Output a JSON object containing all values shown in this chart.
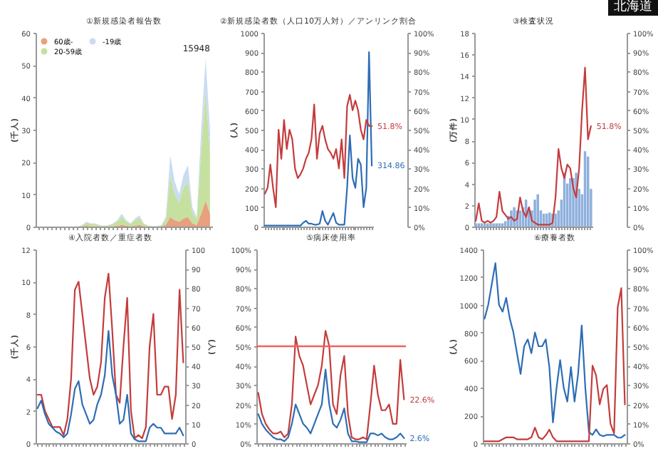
{
  "chart_data": [
    {
      "type": "area",
      "title": "①新規感染者報告数",
      "ylabel": "(千人)",
      "annotations": [
        "15948"
      ],
      "stacked": true,
      "legend": "top left",
      "categories": [
        null,
        null,
        null,
        null,
        null,
        null,
        null,
        null,
        null,
        null,
        null,
        null,
        null,
        null,
        null,
        null,
        null,
        null,
        null,
        null,
        null,
        null,
        null,
        null,
        null,
        null,
        null,
        null,
        null,
        null,
        null,
        null,
        null,
        null,
        null,
        null,
        null,
        null,
        null,
        null
      ],
      "ylim": [
        0,
        60
      ],
      "yticks": [
        0,
        10,
        20,
        30,
        40,
        50,
        60
      ],
      "series": [
        {
          "name": "60歳-",
          "color": "#e8a07f",
          "values": [
            0,
            0,
            0,
            0,
            0,
            0,
            0,
            0,
            0,
            0,
            0.1,
            0.2,
            0.1,
            0.1,
            0.1,
            0,
            0.1,
            0.1,
            0.3,
            0.5,
            0.3,
            0.1,
            0.3,
            0.5,
            0.1,
            0,
            0,
            0,
            0.1,
            0.5,
            3,
            2,
            1.5,
            2.5,
            3,
            1,
            0.5,
            4,
            8,
            4
          ]
        },
        {
          "name": "20-59歳",
          "color": "#c6e0a0",
          "values": [
            0,
            0,
            0,
            0,
            0,
            0,
            0,
            0,
            0,
            0,
            0.3,
            1,
            0.7,
            0.7,
            0.3,
            0.2,
            0.3,
            0.7,
            1.3,
            2.7,
            1.3,
            0.7,
            1.7,
            2.3,
            0.7,
            0.2,
            0.1,
            0.1,
            0.3,
            1.8,
            13,
            8,
            6,
            9.5,
            11,
            3.5,
            1.8,
            19,
            34,
            19
          ]
        },
        {
          "name": "-19歳",
          "color": "#c9dcf0",
          "values": [
            0,
            0,
            0,
            0,
            0,
            0,
            0,
            0,
            0,
            0,
            0.1,
            0.3,
            0.2,
            0.2,
            0.1,
            0.1,
            0.1,
            0.2,
            0.4,
            0.8,
            0.4,
            0.2,
            0.5,
            0.7,
            0.2,
            0.1,
            0.1,
            0.1,
            0.1,
            0.7,
            6,
            4,
            2.5,
            4,
            5,
            1.5,
            0.7,
            7,
            10,
            7
          ]
        }
      ]
    },
    {
      "type": "line",
      "title": "②新規感染者数（人口10万人対）／アンリンク割合",
      "ylabel": "(人)",
      "categories": [
        null,
        null,
        null,
        null,
        null,
        null,
        null,
        null,
        null,
        null,
        null,
        null,
        null,
        null,
        null,
        null,
        null,
        null,
        null,
        null,
        null,
        null,
        null,
        null,
        null,
        null,
        null,
        null,
        null,
        null,
        null,
        null,
        null,
        null,
        null,
        null,
        null,
        null,
        null,
        null
      ],
      "ylim": [
        0,
        1000
      ],
      "yticks": [
        0,
        100,
        200,
        300,
        400,
        500,
        600,
        700,
        800,
        900,
        1000
      ],
      "y2lim": [
        0,
        100
      ],
      "y2ticks": [
        {
          "value": 0,
          "label": "0%"
        },
        {
          "value": 10,
          "label": "10%"
        },
        {
          "value": 20,
          "label": "20%"
        },
        {
          "value": 30,
          "label": "30%"
        },
        {
          "value": 40,
          "label": "40%"
        },
        {
          "value": 50,
          "label": "50%"
        },
        {
          "value": 60,
          "label": "60%"
        },
        {
          "value": 70,
          "label": "70%"
        },
        {
          "value": 80,
          "label": "80%"
        },
        {
          "value": 90,
          "label": "90%"
        },
        {
          "value": 100,
          "label": "100%"
        }
      ],
      "series": [
        {
          "color": "#2e6db5",
          "values": [
            5,
            5,
            5,
            5,
            5,
            5,
            5,
            5,
            5,
            5,
            5,
            5,
            5,
            5,
            20,
            30,
            15,
            15,
            10,
            10,
            15,
            80,
            30,
            10,
            40,
            70,
            20,
            10,
            10,
            10,
            200,
            470,
            250,
            200,
            350,
            320,
            100,
            200,
            900,
            314.86
          ],
          "value_labels": [
            null,
            null,
            null,
            null,
            null,
            null,
            null,
            null,
            null,
            null,
            null,
            null,
            null,
            null,
            null,
            null,
            null,
            null,
            null,
            null,
            null,
            null,
            null,
            null,
            null,
            null,
            null,
            null,
            null,
            null,
            null,
            null,
            null,
            null,
            null,
            null,
            null,
            null,
            null,
            "314.86"
          ]
        },
        {
          "color": "#c43c3c",
          "axis": "y2",
          "values": [
            17,
            20,
            32,
            20,
            10,
            50,
            35,
            55,
            40,
            50,
            45,
            30,
            25,
            27,
            30,
            35,
            38,
            45,
            63,
            35,
            48,
            52,
            45,
            40,
            38,
            35,
            40,
            30,
            45,
            25,
            62,
            68,
            60,
            65,
            60,
            50,
            45,
            55,
            52,
            51.8
          ],
          "value_labels": [
            null,
            null,
            null,
            null,
            null,
            null,
            null,
            null,
            null,
            null,
            null,
            null,
            null,
            null,
            null,
            null,
            null,
            null,
            null,
            null,
            null,
            null,
            null,
            null,
            null,
            null,
            null,
            null,
            null,
            null,
            null,
            null,
            null,
            null,
            null,
            null,
            null,
            null,
            null,
            "51.8%"
          ]
        }
      ]
    },
    {
      "type": "bar",
      "title": "③検査状況",
      "ylabel": "(万件)",
      "categories": [
        null,
        null,
        null,
        null,
        null,
        null,
        null,
        null,
        null,
        null,
        null,
        null,
        null,
        null,
        null,
        null,
        null,
        null,
        null,
        null,
        null,
        null,
        null,
        null,
        null,
        null,
        null,
        null,
        null,
        null,
        null,
        null,
        null,
        null,
        null,
        null,
        null,
        null,
        null,
        null
      ],
      "ylim": [
        0,
        18
      ],
      "yticks": [
        0,
        2,
        4,
        6,
        8,
        10,
        12,
        14,
        16,
        18
      ],
      "y2lim": [
        0,
        100
      ],
      "y2ticks": [
        {
          "value": 0,
          "label": "0%"
        },
        {
          "value": 10,
          "label": "10%"
        },
        {
          "value": 20,
          "label": "20%"
        },
        {
          "value": 30,
          "label": "30%"
        },
        {
          "value": 40,
          "label": "40%"
        },
        {
          "value": 50,
          "label": "50%"
        },
        {
          "value": 60,
          "label": "60%"
        },
        {
          "value": 70,
          "label": "70%"
        },
        {
          "value": 80,
          "label": "80%"
        },
        {
          "value": 90,
          "label": "90%"
        },
        {
          "value": 100,
          "label": "100%"
        }
      ],
      "series": [
        {
          "color": "#8fb0dd",
          "values": [
            0.3,
            0.3,
            0.3,
            0.3,
            0.3,
            0.3,
            0.3,
            0.3,
            0.3,
            0.3,
            0.5,
            1,
            1.5,
            1.8,
            1.5,
            1.5,
            1.8,
            2.5,
            1.5,
            1.5,
            2.5,
            3,
            1.5,
            1.2,
            1.2,
            1.3,
            1.2,
            1.2,
            1.5,
            2.5,
            5,
            4,
            4.5,
            4.5,
            5,
            3.5,
            3,
            7,
            6.5,
            3.5
          ]
        },
        {
          "type": "line",
          "color": "#c43c3c",
          "axis": "y2",
          "values": [
            3,
            12,
            3,
            2,
            3,
            2,
            3,
            5,
            18,
            8,
            6,
            4,
            5,
            3,
            4,
            15,
            8,
            5,
            10,
            3,
            2,
            1,
            1,
            1,
            1,
            1,
            2,
            15,
            40,
            30,
            25,
            32,
            30,
            20,
            15,
            30,
            60,
            82,
            45,
            51.8
          ],
          "value_labels": [
            null,
            null,
            null,
            null,
            null,
            null,
            null,
            null,
            null,
            null,
            null,
            null,
            null,
            null,
            null,
            null,
            null,
            null,
            null,
            null,
            null,
            null,
            null,
            null,
            null,
            null,
            null,
            null,
            null,
            null,
            null,
            null,
            null,
            null,
            null,
            null,
            null,
            null,
            null,
            "51.8%"
          ]
        }
      ]
    },
    {
      "type": "line",
      "title": "④入院者数／重症者数",
      "ylabel": "(千人)",
      "y2label": "(人)",
      "categories": [
        null,
        null,
        null,
        null,
        null,
        null,
        null,
        null,
        null,
        null,
        null,
        null,
        null,
        null,
        null,
        null,
        null,
        null,
        null,
        null,
        null,
        null,
        null,
        null,
        null,
        null,
        null,
        null,
        null,
        null,
        null,
        null,
        null,
        null,
        null,
        null,
        null,
        null,
        null,
        null
      ],
      "ylim": [
        0,
        12
      ],
      "yticks": [
        0,
        2,
        4,
        6,
        8,
        10,
        12
      ],
      "y2lim": [
        0,
        100
      ],
      "y2ticks": [
        0,
        10,
        20,
        30,
        40,
        50,
        60,
        70,
        80,
        90,
        100
      ],
      "series": [
        {
          "color": "#c43c3c",
          "values": [
            3,
            3,
            2,
            1.5,
            1,
            1,
            1,
            0.5,
            1.5,
            4,
            9.5,
            10,
            8,
            6,
            4,
            3,
            3.5,
            5,
            9,
            10.5,
            7,
            3,
            2.5,
            6,
            9,
            2,
            0.3,
            0.5,
            0.3,
            1,
            6,
            8,
            3,
            3,
            3.5,
            3.5,
            1.5,
            3,
            9.5,
            5
          ]
        },
        {
          "color": "#2e6db5",
          "axis": "y2",
          "values": [
            18,
            22,
            15,
            10,
            8,
            6,
            5,
            3,
            5,
            15,
            28,
            32,
            20,
            15,
            10,
            12,
            20,
            25,
            35,
            58,
            35,
            25,
            10,
            12,
            25,
            5,
            2,
            1,
            1,
            1,
            8,
            10,
            8,
            8,
            5,
            5,
            5,
            5,
            8,
            4
          ]
        }
      ]
    },
    {
      "type": "line",
      "title": "⑤病床使用率",
      "categories": [
        null,
        null,
        null,
        null,
        null,
        null,
        null,
        null,
        null,
        null,
        null,
        null,
        null,
        null,
        null,
        null,
        null,
        null,
        null,
        null,
        null,
        null,
        null,
        null,
        null,
        null,
        null,
        null,
        null,
        null,
        null,
        null,
        null,
        null,
        null,
        null,
        null,
        null,
        null,
        null
      ],
      "ylim": [
        0,
        100
      ],
      "yticks": [
        {
          "value": 0,
          "label": "0%"
        },
        {
          "value": 10,
          "label": "10%"
        },
        {
          "value": 20,
          "label": "20%"
        },
        {
          "value": 30,
          "label": "30%"
        },
        {
          "value": 40,
          "label": "40%"
        },
        {
          "value": 50,
          "label": "50%"
        },
        {
          "value": 60,
          "label": "60%"
        },
        {
          "value": 70,
          "label": "70%"
        },
        {
          "value": 80,
          "label": "80%"
        },
        {
          "value": 90,
          "label": "90%"
        },
        {
          "value": 100,
          "label": "100%"
        }
      ],
      "ref_lines": [
        {
          "axis": "y",
          "value": 50,
          "color": "#f06060"
        }
      ],
      "series": [
        {
          "color": "#c43c3c",
          "values": [
            26,
            15,
            10,
            7,
            5,
            5,
            6,
            3,
            5,
            20,
            55,
            45,
            40,
            30,
            20,
            25,
            30,
            40,
            58,
            50,
            20,
            15,
            35,
            45,
            15,
            3,
            2,
            2,
            3,
            2,
            20,
            40,
            25,
            17,
            17,
            20,
            10,
            10,
            43,
            22.6
          ],
          "value_labels": [
            null,
            null,
            null,
            null,
            null,
            null,
            null,
            null,
            null,
            null,
            null,
            null,
            null,
            null,
            null,
            null,
            null,
            null,
            null,
            null,
            null,
            null,
            null,
            null,
            null,
            null,
            null,
            null,
            null,
            null,
            null,
            null,
            null,
            null,
            null,
            null,
            null,
            null,
            null,
            "22.6%"
          ]
        },
        {
          "color": "#2e6db5",
          "values": [
            15,
            10,
            7,
            5,
            3,
            2,
            2,
            1,
            3,
            10,
            20,
            15,
            10,
            8,
            5,
            10,
            15,
            20,
            38,
            20,
            10,
            8,
            12,
            18,
            5,
            1,
            1,
            0.5,
            0.5,
            0.5,
            5,
            5,
            4,
            5,
            3,
            2,
            2,
            3,
            5,
            2.6
          ],
          "value_labels": [
            null,
            null,
            null,
            null,
            null,
            null,
            null,
            null,
            null,
            null,
            null,
            null,
            null,
            null,
            null,
            null,
            null,
            null,
            null,
            null,
            null,
            null,
            null,
            null,
            null,
            null,
            null,
            null,
            null,
            null,
            null,
            null,
            null,
            null,
            null,
            null,
            null,
            null,
            null,
            "2.6%"
          ]
        }
      ]
    },
    {
      "type": "line",
      "title": "⑥療養者数",
      "ylabel": "(人)",
      "categories": [
        null,
        null,
        null,
        null,
        null,
        null,
        null,
        null,
        null,
        null,
        null,
        null,
        null,
        null,
        null,
        null,
        null,
        null,
        null,
        null,
        null,
        null,
        null,
        null,
        null,
        null,
        null,
        null,
        null,
        null,
        null,
        null,
        null,
        null,
        null,
        null,
        null,
        null,
        null,
        null
      ],
      "ylim": [
        0,
        1400
      ],
      "yticks": [
        0,
        200,
        400,
        600,
        800,
        1000,
        1200,
        1400
      ],
      "y2lim": [
        0,
        100
      ],
      "y2ticks": [
        {
          "value": 0,
          "label": "0%"
        },
        {
          "value": 10,
          "label": "10%"
        },
        {
          "value": 20,
          "label": "20%"
        },
        {
          "value": 30,
          "label": "30%"
        },
        {
          "value": 40,
          "label": "40%"
        },
        {
          "value": 50,
          "label": "50%"
        },
        {
          "value": 60,
          "label": "60%"
        },
        {
          "value": 70,
          "label": "70%"
        },
        {
          "value": 80,
          "label": "80%"
        },
        {
          "value": 90,
          "label": "90%"
        },
        {
          "value": 100,
          "label": "100%"
        }
      ],
      "series": [
        {
          "color": "#2e6db5",
          "values": [
            900,
            1000,
            1150,
            1300,
            1000,
            950,
            1050,
            900,
            800,
            650,
            500,
            700,
            750,
            650,
            800,
            700,
            700,
            750,
            550,
            150,
            400,
            600,
            400,
            300,
            550,
            300,
            500,
            850,
            400,
            80,
            60,
            100,
            60,
            50,
            60,
            60,
            60,
            40,
            40,
            60
          ]
        },
        {
          "color": "#c43c3c",
          "axis": "y2",
          "values": [
            1,
            1,
            1,
            1,
            1,
            2,
            3,
            3,
            3,
            2,
            2,
            2,
            2,
            3,
            8,
            3,
            2,
            4,
            7,
            3,
            1,
            1,
            1,
            1,
            1,
            1,
            1,
            1,
            1,
            1,
            40,
            35,
            20,
            28,
            30,
            10,
            5,
            70,
            80,
            20
          ]
        }
      ]
    },
    {
      "type": "other",
      "title": "北海道"
    }
  ]
}
